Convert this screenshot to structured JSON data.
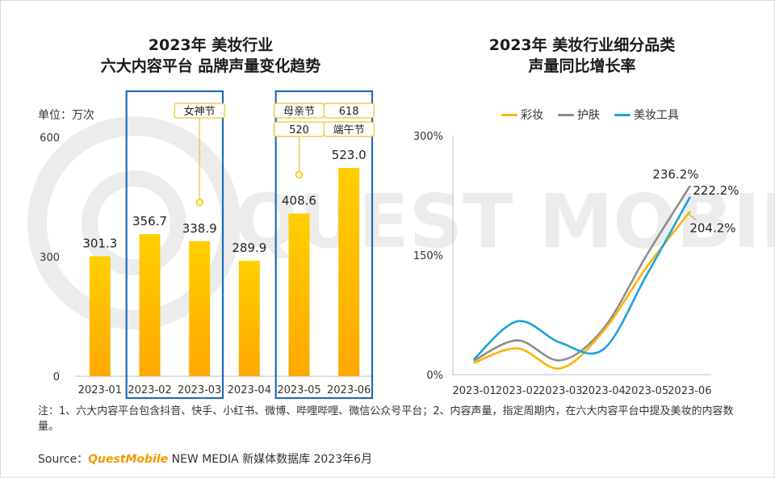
{
  "left_title": [
    "2023年 美妆行业",
    "六大内容平台 品牌声量变化趋势"
  ],
  "right_title": [
    "2023年 美妆行业细分品类",
    "声量同比增长率"
  ],
  "unit_label": "单位：万次",
  "note": "注：1、六大内容平台包含抖音、快手、小红书、微博、哔哩哔哩、微信公众号平台；2、内容声量，指定周期内，在六大内容平台中提及美妆的内容数量。",
  "source": {
    "prefix": "Source：",
    "brand": "QuestMobile",
    "rest": " NEW MEDIA 新媒体数据库 2023年6月"
  },
  "watermark": "QUEST MOBILE",
  "colors": {
    "bar": "#ffc000",
    "caizhuang": "#ffb300",
    "hufu": "#8c8c8c",
    "meizhuang_tools": "#1ba3dc",
    "highlight_box": "#1f6cb5"
  },
  "chart_data": [
    {
      "type": "bar",
      "categories": [
        "2023-01",
        "2023-02",
        "2023-03",
        "2023-04",
        "2023-05",
        "2023-06"
      ],
      "values": [
        301.3,
        356.7,
        338.9,
        289.9,
        408.6,
        523.0
      ],
      "value_labels": [
        "301.3",
        "356.7",
        "338.9",
        "289.9",
        "408.6",
        "523.0"
      ],
      "yticks": [
        "0",
        "300",
        "600"
      ],
      "ylim": [
        0,
        600
      ],
      "annotations": [
        {
          "category_index": 2,
          "labels": [
            "女神节"
          ]
        },
        {
          "category_index": 4,
          "labels": [
            "母亲节",
            "520"
          ]
        },
        {
          "category_index": 5,
          "labels": [
            "618",
            "端午节"
          ]
        }
      ],
      "highlight_groups": [
        [
          1,
          2
        ],
        [
          4,
          5
        ]
      ]
    },
    {
      "type": "line",
      "categories": [
        "2023-01",
        "2023-02",
        "2023-03",
        "2023-04",
        "2023-05",
        "2023-06"
      ],
      "yticks": [
        "0%",
        "150%",
        "300%"
      ],
      "ylim": [
        0,
        300
      ],
      "series": [
        {
          "name": "彩妆",
          "values": [
            15,
            33,
            8,
            55,
            135,
            204.2
          ]
        },
        {
          "name": "护肤",
          "values": [
            18,
            43,
            18,
            58,
            150,
            236.2
          ]
        },
        {
          "name": "美妆工具",
          "values": [
            20,
            67,
            40,
            32,
            125,
            222.2
          ]
        }
      ],
      "end_labels": [
        "204.2%",
        "236.2%",
        "222.2%"
      ]
    }
  ]
}
